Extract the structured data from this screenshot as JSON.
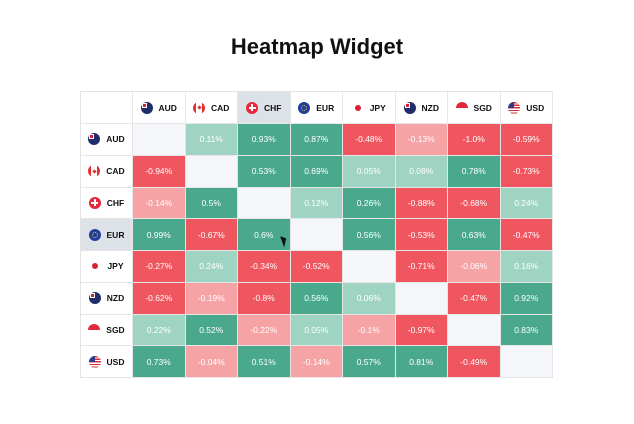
{
  "widget": {
    "title": "Heatmap Widget"
  },
  "colors": {
    "strong_positive": "#4aa98d",
    "light_positive": "#9fd4c3",
    "strong_negative": "#f0565f",
    "light_negative": "#f6a3a6",
    "diagonal": "#f5f6fa",
    "selected_header": "#dde2e8"
  },
  "currencies": [
    {
      "code": "AUD",
      "icon": "australia-flag-icon"
    },
    {
      "code": "CAD",
      "icon": "canada-flag-icon"
    },
    {
      "code": "CHF",
      "icon": "switzerland-flag-icon"
    },
    {
      "code": "EUR",
      "icon": "eu-flag-icon"
    },
    {
      "code": "JPY",
      "icon": "japan-flag-icon"
    },
    {
      "code": "NZD",
      "icon": "new-zealand-flag-icon"
    },
    {
      "code": "SGD",
      "icon": "singapore-flag-icon"
    },
    {
      "code": "USD",
      "icon": "usa-flag-icon"
    }
  ],
  "highlight": {
    "column": "CHF",
    "row": "EUR"
  },
  "matrix": [
    {
      "label": "AUD",
      "cells": [
        {
          "text": "",
          "tone": "diag"
        },
        {
          "text": "0.11%",
          "tone": "lp"
        },
        {
          "text": "0.93%",
          "tone": "sp"
        },
        {
          "text": "0.87%",
          "tone": "sp"
        },
        {
          "text": "-0.48%",
          "tone": "sn"
        },
        {
          "text": "-0.13%",
          "tone": "ln"
        },
        {
          "text": "-1.0%",
          "tone": "sn"
        },
        {
          "text": "-0.59%",
          "tone": "sn"
        }
      ]
    },
    {
      "label": "CAD",
      "cells": [
        {
          "text": "-0.94%",
          "tone": "sn"
        },
        {
          "text": "",
          "tone": "diag"
        },
        {
          "text": "0.53%",
          "tone": "sp"
        },
        {
          "text": "0.69%",
          "tone": "sp"
        },
        {
          "text": "0.05%",
          "tone": "lp"
        },
        {
          "text": "0.08%",
          "tone": "lp"
        },
        {
          "text": "0.78%",
          "tone": "sp"
        },
        {
          "text": "-0.73%",
          "tone": "sn"
        }
      ]
    },
    {
      "label": "CHF",
      "cells": [
        {
          "text": "-0.14%",
          "tone": "ln"
        },
        {
          "text": "0.5%",
          "tone": "sp"
        },
        {
          "text": "",
          "tone": "diag"
        },
        {
          "text": "0.12%",
          "tone": "lp"
        },
        {
          "text": "0.26%",
          "tone": "sp"
        },
        {
          "text": "-0.88%",
          "tone": "sn"
        },
        {
          "text": "-0.68%",
          "tone": "sn"
        },
        {
          "text": "0.24%",
          "tone": "lp"
        }
      ]
    },
    {
      "label": "EUR",
      "cells": [
        {
          "text": "0.99%",
          "tone": "sp"
        },
        {
          "text": "-0.67%",
          "tone": "sn"
        },
        {
          "text": "0.6%",
          "tone": "sp"
        },
        {
          "text": "",
          "tone": "diag"
        },
        {
          "text": "0.56%",
          "tone": "sp"
        },
        {
          "text": "-0.53%",
          "tone": "sn"
        },
        {
          "text": "0.63%",
          "tone": "sp"
        },
        {
          "text": "-0.47%",
          "tone": "sn"
        }
      ]
    },
    {
      "label": "JPY",
      "cells": [
        {
          "text": "-0.27%",
          "tone": "sn"
        },
        {
          "text": "0.24%",
          "tone": "lp"
        },
        {
          "text": "-0.34%",
          "tone": "sn"
        },
        {
          "text": "-0.52%",
          "tone": "sn"
        },
        {
          "text": "",
          "tone": "diag"
        },
        {
          "text": "-0.71%",
          "tone": "sn"
        },
        {
          "text": "-0.06%",
          "tone": "ln"
        },
        {
          "text": "0.16%",
          "tone": "lp"
        }
      ]
    },
    {
      "label": "NZD",
      "cells": [
        {
          "text": "-0.62%",
          "tone": "sn"
        },
        {
          "text": "-0.19%",
          "tone": "ln"
        },
        {
          "text": "-0.8%",
          "tone": "sn"
        },
        {
          "text": "0.56%",
          "tone": "sp"
        },
        {
          "text": "0.06%",
          "tone": "lp"
        },
        {
          "text": "",
          "tone": "diag"
        },
        {
          "text": "-0.47%",
          "tone": "sn"
        },
        {
          "text": "0.92%",
          "tone": "sp"
        }
      ]
    },
    {
      "label": "SGD",
      "cells": [
        {
          "text": "0.22%",
          "tone": "lp"
        },
        {
          "text": "0.52%",
          "tone": "sp"
        },
        {
          "text": "-0.22%",
          "tone": "ln"
        },
        {
          "text": "0.05%",
          "tone": "lp"
        },
        {
          "text": "-0.1%",
          "tone": "ln"
        },
        {
          "text": "-0.97%",
          "tone": "sn"
        },
        {
          "text": "",
          "tone": "diag"
        },
        {
          "text": "0.83%",
          "tone": "sp"
        }
      ]
    },
    {
      "label": "USD",
      "cells": [
        {
          "text": "0.73%",
          "tone": "sp"
        },
        {
          "text": "-0.04%",
          "tone": "ln"
        },
        {
          "text": "0.51%",
          "tone": "sp"
        },
        {
          "text": "-0.14%",
          "tone": "ln"
        },
        {
          "text": "0.57%",
          "tone": "sp"
        },
        {
          "text": "0.81%",
          "tone": "sp"
        },
        {
          "text": "-0.49%",
          "tone": "sn"
        },
        {
          "text": "",
          "tone": "diag"
        }
      ]
    }
  ]
}
